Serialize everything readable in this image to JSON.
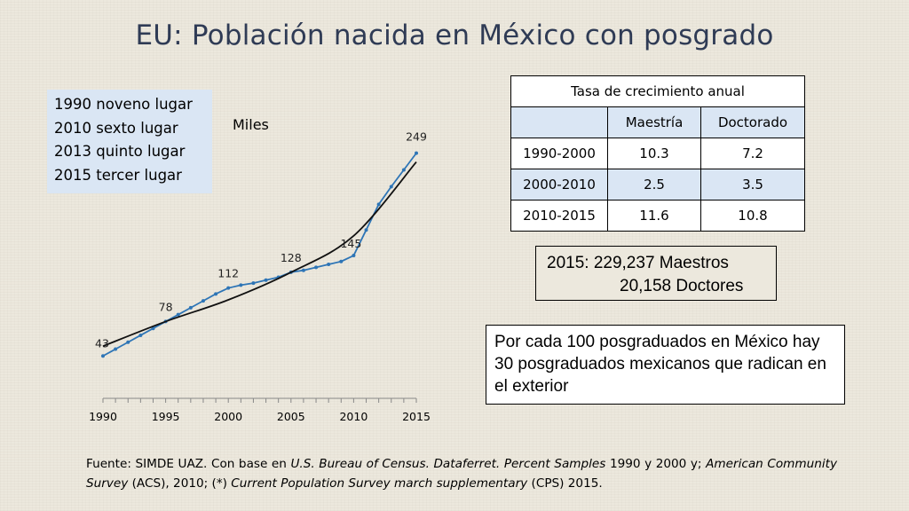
{
  "title": "EU: Población nacida en México con posgrado",
  "ranking": [
    "1990 noveno lugar",
    "2010 sexto lugar",
    "2013 quinto lugar",
    "2015 tercer lugar"
  ],
  "units_label": "Miles",
  "chart_data": {
    "type": "line",
    "x_ticks": [
      1990,
      1995,
      2000,
      2005,
      2010,
      2015
    ],
    "xlim": [
      1990,
      2015
    ],
    "series": [
      {
        "x": [
          1990,
          1991,
          1992,
          1993,
          1994,
          1995,
          1996,
          1997,
          1998,
          1999,
          2000,
          2001,
          2002,
          2003,
          2004,
          2005,
          2006,
          2007,
          2008,
          2009,
          2010,
          2011,
          2012,
          2013,
          2014,
          2015
        ],
        "y": [
          43,
          50,
          57,
          64,
          71,
          78,
          85,
          92,
          99,
          106,
          112,
          115,
          117,
          120,
          123,
          128,
          130,
          133,
          136,
          139,
          145,
          171,
          197,
          215,
          232,
          249
        ],
        "color": "#2e75b6"
      },
      {
        "type": "trend",
        "x": [
          1990,
          1995,
          2000,
          2005,
          2010,
          2015
        ],
        "y": [
          53,
          78,
          100,
          128,
          165,
          240
        ],
        "color": "#111111"
      }
    ],
    "data_labels": [
      {
        "x": 1990,
        "label": "43"
      },
      {
        "x": 1995,
        "label": "78"
      },
      {
        "x": 2000,
        "label": "112"
      },
      {
        "x": 2005,
        "label": "128"
      },
      {
        "x": 2010,
        "label": "145"
      },
      {
        "x": 2015,
        "label": "249"
      }
    ],
    "grid": false
  },
  "table": {
    "caption": "Tasa de crecimiento anual",
    "headers": [
      "",
      "Maestría",
      "Doctorado"
    ],
    "rows": [
      [
        "1990-2000",
        "10.3",
        "7.2"
      ],
      [
        "2000-2010",
        "2.5",
        "3.5"
      ],
      [
        "2010-2015",
        "11.6",
        "10.8"
      ]
    ]
  },
  "totals": {
    "line1": "2015:  229,237 Maestros",
    "line2": "20,158 Doctores"
  },
  "note": "Por cada 100 posgraduados en México hay 30 posgraduados mexicanos que radican en el exterior",
  "source": {
    "p1": "Fuente: SIMDE UAZ. Con base en ",
    "i1": "U.S. Bureau of Census. Dataferret. Percent Samples",
    "p2": " 1990 y 2000 y; ",
    "i2": "American Community Survey",
    "p3": " (ACS), 2010; (*) ",
    "i3": "Current Population Survey march supplementary",
    "p4": " (CPS) 2015."
  },
  "colors": {
    "background": "#ece8dd",
    "title": "#2f3b55",
    "series": "#2e75b6",
    "highlight": "#dae6f4"
  }
}
